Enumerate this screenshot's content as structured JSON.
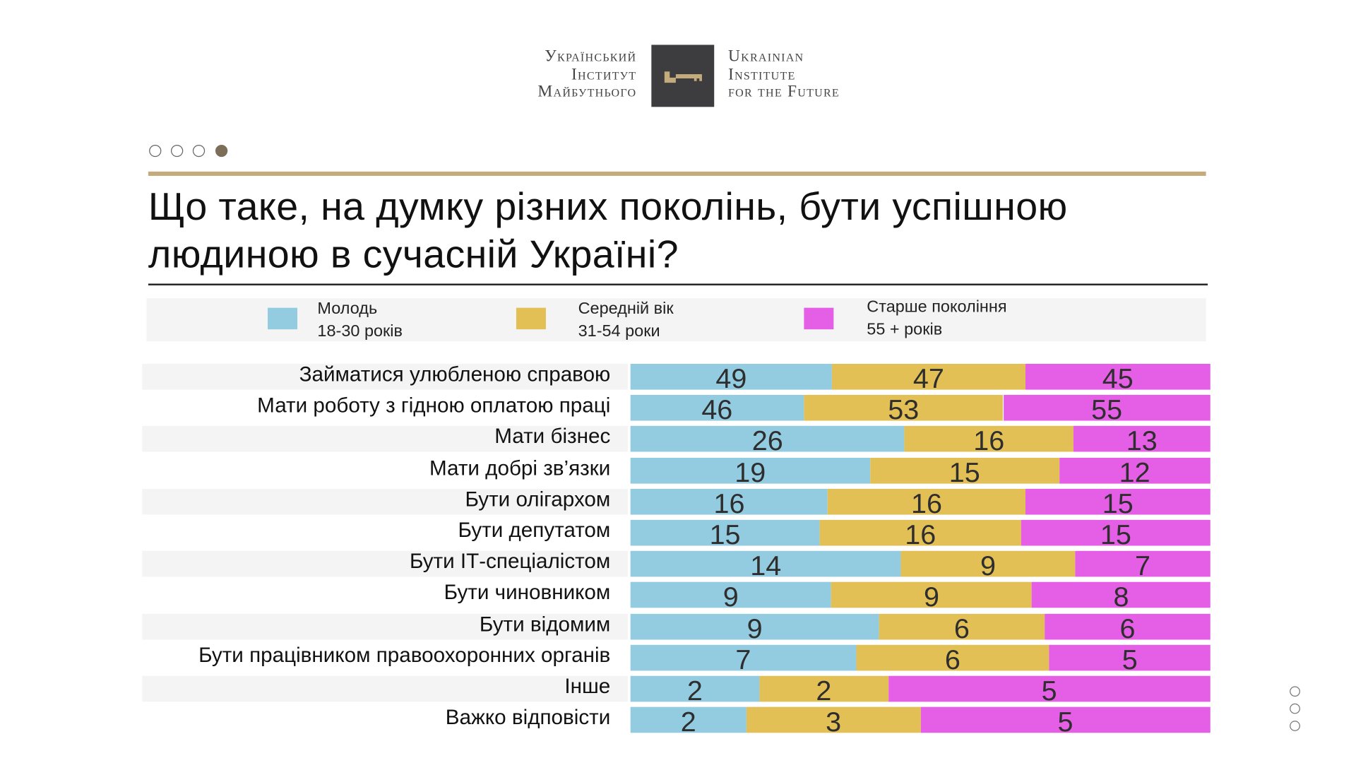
{
  "logo": {
    "left_lines": [
      "Український",
      "Інститут",
      "Майбутнього"
    ],
    "right_lines": [
      "Ukrainian",
      "Institute",
      "for the Future"
    ],
    "icon": "key-icon"
  },
  "pager": {
    "count": 4,
    "active": 4
  },
  "side_pager": {
    "count": 3
  },
  "colors": {
    "youth": "#93cbe0",
    "middle": "#e2c056",
    "older": "#e55ee6",
    "gold": "#c4ab7c",
    "pager_active": "#7d6e5a"
  },
  "chart_data": {
    "type": "bar",
    "orientation": "horizontal",
    "stacked": "100% per row",
    "title": "Що таке, на думку різних поколінь, бути успішною людиною в сучасній Україні?",
    "title_lines": [
      "Що таке, на думку різних поколінь, бути успішною",
      "людиною в сучасній Україні?"
    ],
    "legend_placement": "top",
    "grid": false,
    "categories": [
      "Займатися улюбленою справою",
      "Мати роботу з гідною оплатою праці",
      "Мати бізнес",
      "Мати добрі зв’язки",
      "Бути олігархом",
      "Бути депутатом",
      "Бути ІТ-спеціалістом",
      "Бути чиновником",
      "Бути відомим",
      "Бути працівником правоохоронних органів",
      "Інше",
      "Важко відповісти"
    ],
    "series": [
      {
        "name": "Молодь",
        "sub": "18-30 років",
        "color": "#93cbe0",
        "values": [
          49,
          46,
          26,
          19,
          16,
          15,
          14,
          9,
          9,
          7,
          2,
          2
        ]
      },
      {
        "name": "Середній вік",
        "sub": "31-54 роки",
        "color": "#e2c056",
        "values": [
          47,
          53,
          16,
          15,
          16,
          16,
          9,
          9,
          6,
          6,
          2,
          3
        ]
      },
      {
        "name": "Старше покоління",
        "sub": "55 + років",
        "color": "#e55ee6",
        "values": [
          45,
          55,
          13,
          12,
          15,
          15,
          7,
          8,
          6,
          5,
          5,
          5
        ]
      }
    ]
  }
}
